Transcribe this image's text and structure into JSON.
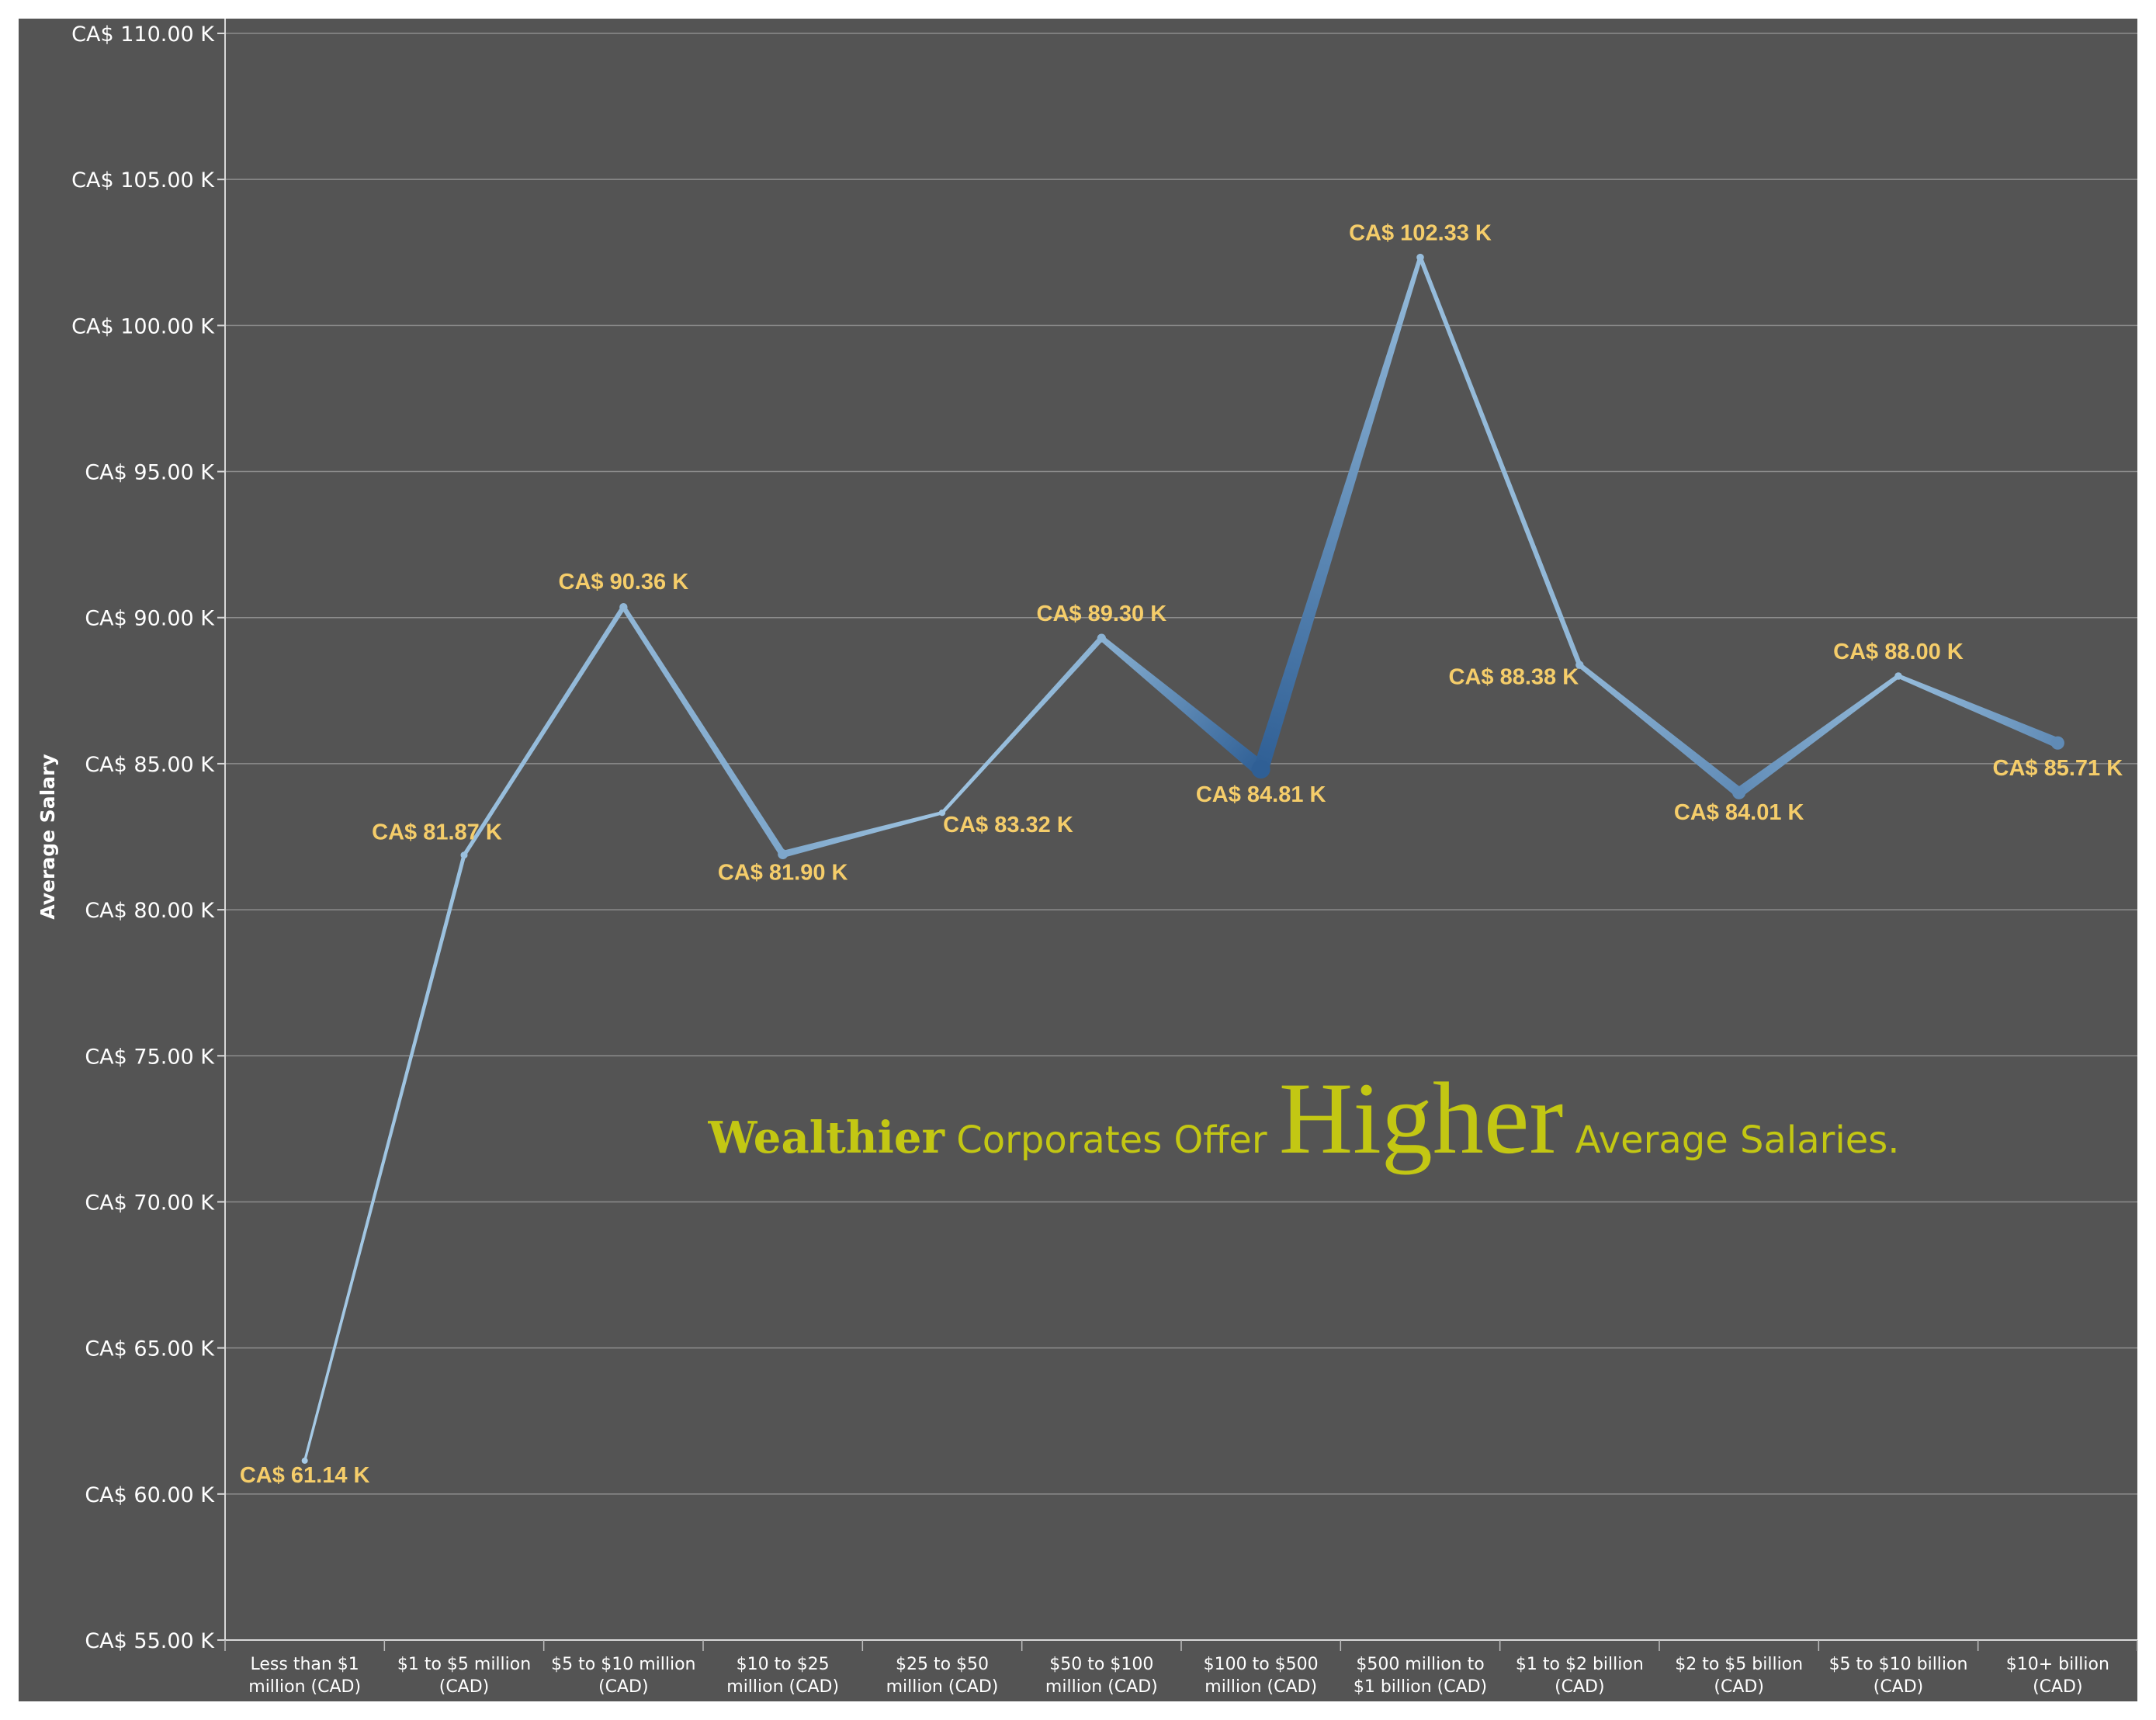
{
  "colors": {
    "background": "#545454",
    "outer_background": "#ffffff",
    "gridline": "#8c8c8c",
    "axis": "#d8d8d8",
    "line_light": "#a9cde8",
    "line_dark": "#2f5f95",
    "data_label": "#f5cd6a",
    "annotation": "#c3c713",
    "text": "#ffffff"
  },
  "chart_data": {
    "type": "line",
    "title": "",
    "ylabel": "Average Salary",
    "xlabel": "",
    "ylim": [
      55,
      110
    ],
    "ytick_values": [
      55,
      60,
      65,
      70,
      75,
      80,
      85,
      90,
      95,
      100,
      105,
      110
    ],
    "ytick_labels": [
      "CA$ 55.00 K",
      "CA$ 60.00 K",
      "CA$ 65.00 K",
      "CA$ 70.00 K",
      "CA$ 75.00 K",
      "CA$ 80.00 K",
      "CA$ 85.00 K",
      "CA$ 90.00 K",
      "CA$ 95.00 K",
      "CA$ 100.00 K",
      "CA$ 105.00 K",
      "CA$ 110.00 K"
    ],
    "grid": true,
    "categories": [
      [
        "Less than $1",
        "million (CAD)"
      ],
      [
        "$1 to $5 million",
        "(CAD)"
      ],
      [
        "$5 to $10 million",
        "(CAD)"
      ],
      [
        "$10 to $25",
        "million (CAD)"
      ],
      [
        "$25 to $50",
        "million (CAD)"
      ],
      [
        "$50 to $100",
        "million (CAD)"
      ],
      [
        "$100 to $500",
        "million (CAD)"
      ],
      [
        "$500 million to",
        "$1 billion (CAD)"
      ],
      [
        "$1 to $2 billion",
        "(CAD)"
      ],
      [
        "$2 to $5 billion",
        "(CAD)"
      ],
      [
        "$5 to $10 billion",
        "(CAD)"
      ],
      [
        "$10+ billion",
        "(CAD)"
      ]
    ],
    "values": [
      61.14,
      81.87,
      90.36,
      81.9,
      83.32,
      89.3,
      84.81,
      102.33,
      88.38,
      84.01,
      88.0,
      85.71
    ],
    "data_labels": [
      "CA$ 61.14 K",
      "CA$ 81.87 K",
      "CA$ 90.36 K",
      "CA$ 81.90 K",
      "CA$ 83.32 K",
      "CA$ 89.30 K",
      "CA$ 84.81 K",
      "CA$ 102.33 K",
      "CA$ 88.38 K",
      "CA$ 84.01 K",
      "CA$ 88.00 K",
      "CA$ 85.71 K"
    ],
    "size_weight": [
      0.02,
      0.12,
      0.2,
      0.35,
      0.08,
      0.25,
      1.0,
      0.15,
      0.2,
      0.6,
      0.15,
      0.6
    ],
    "annotation": {
      "parts": [
        "Wealthier",
        " Corporates Offer ",
        "Higher",
        " Average Salaries."
      ]
    }
  }
}
